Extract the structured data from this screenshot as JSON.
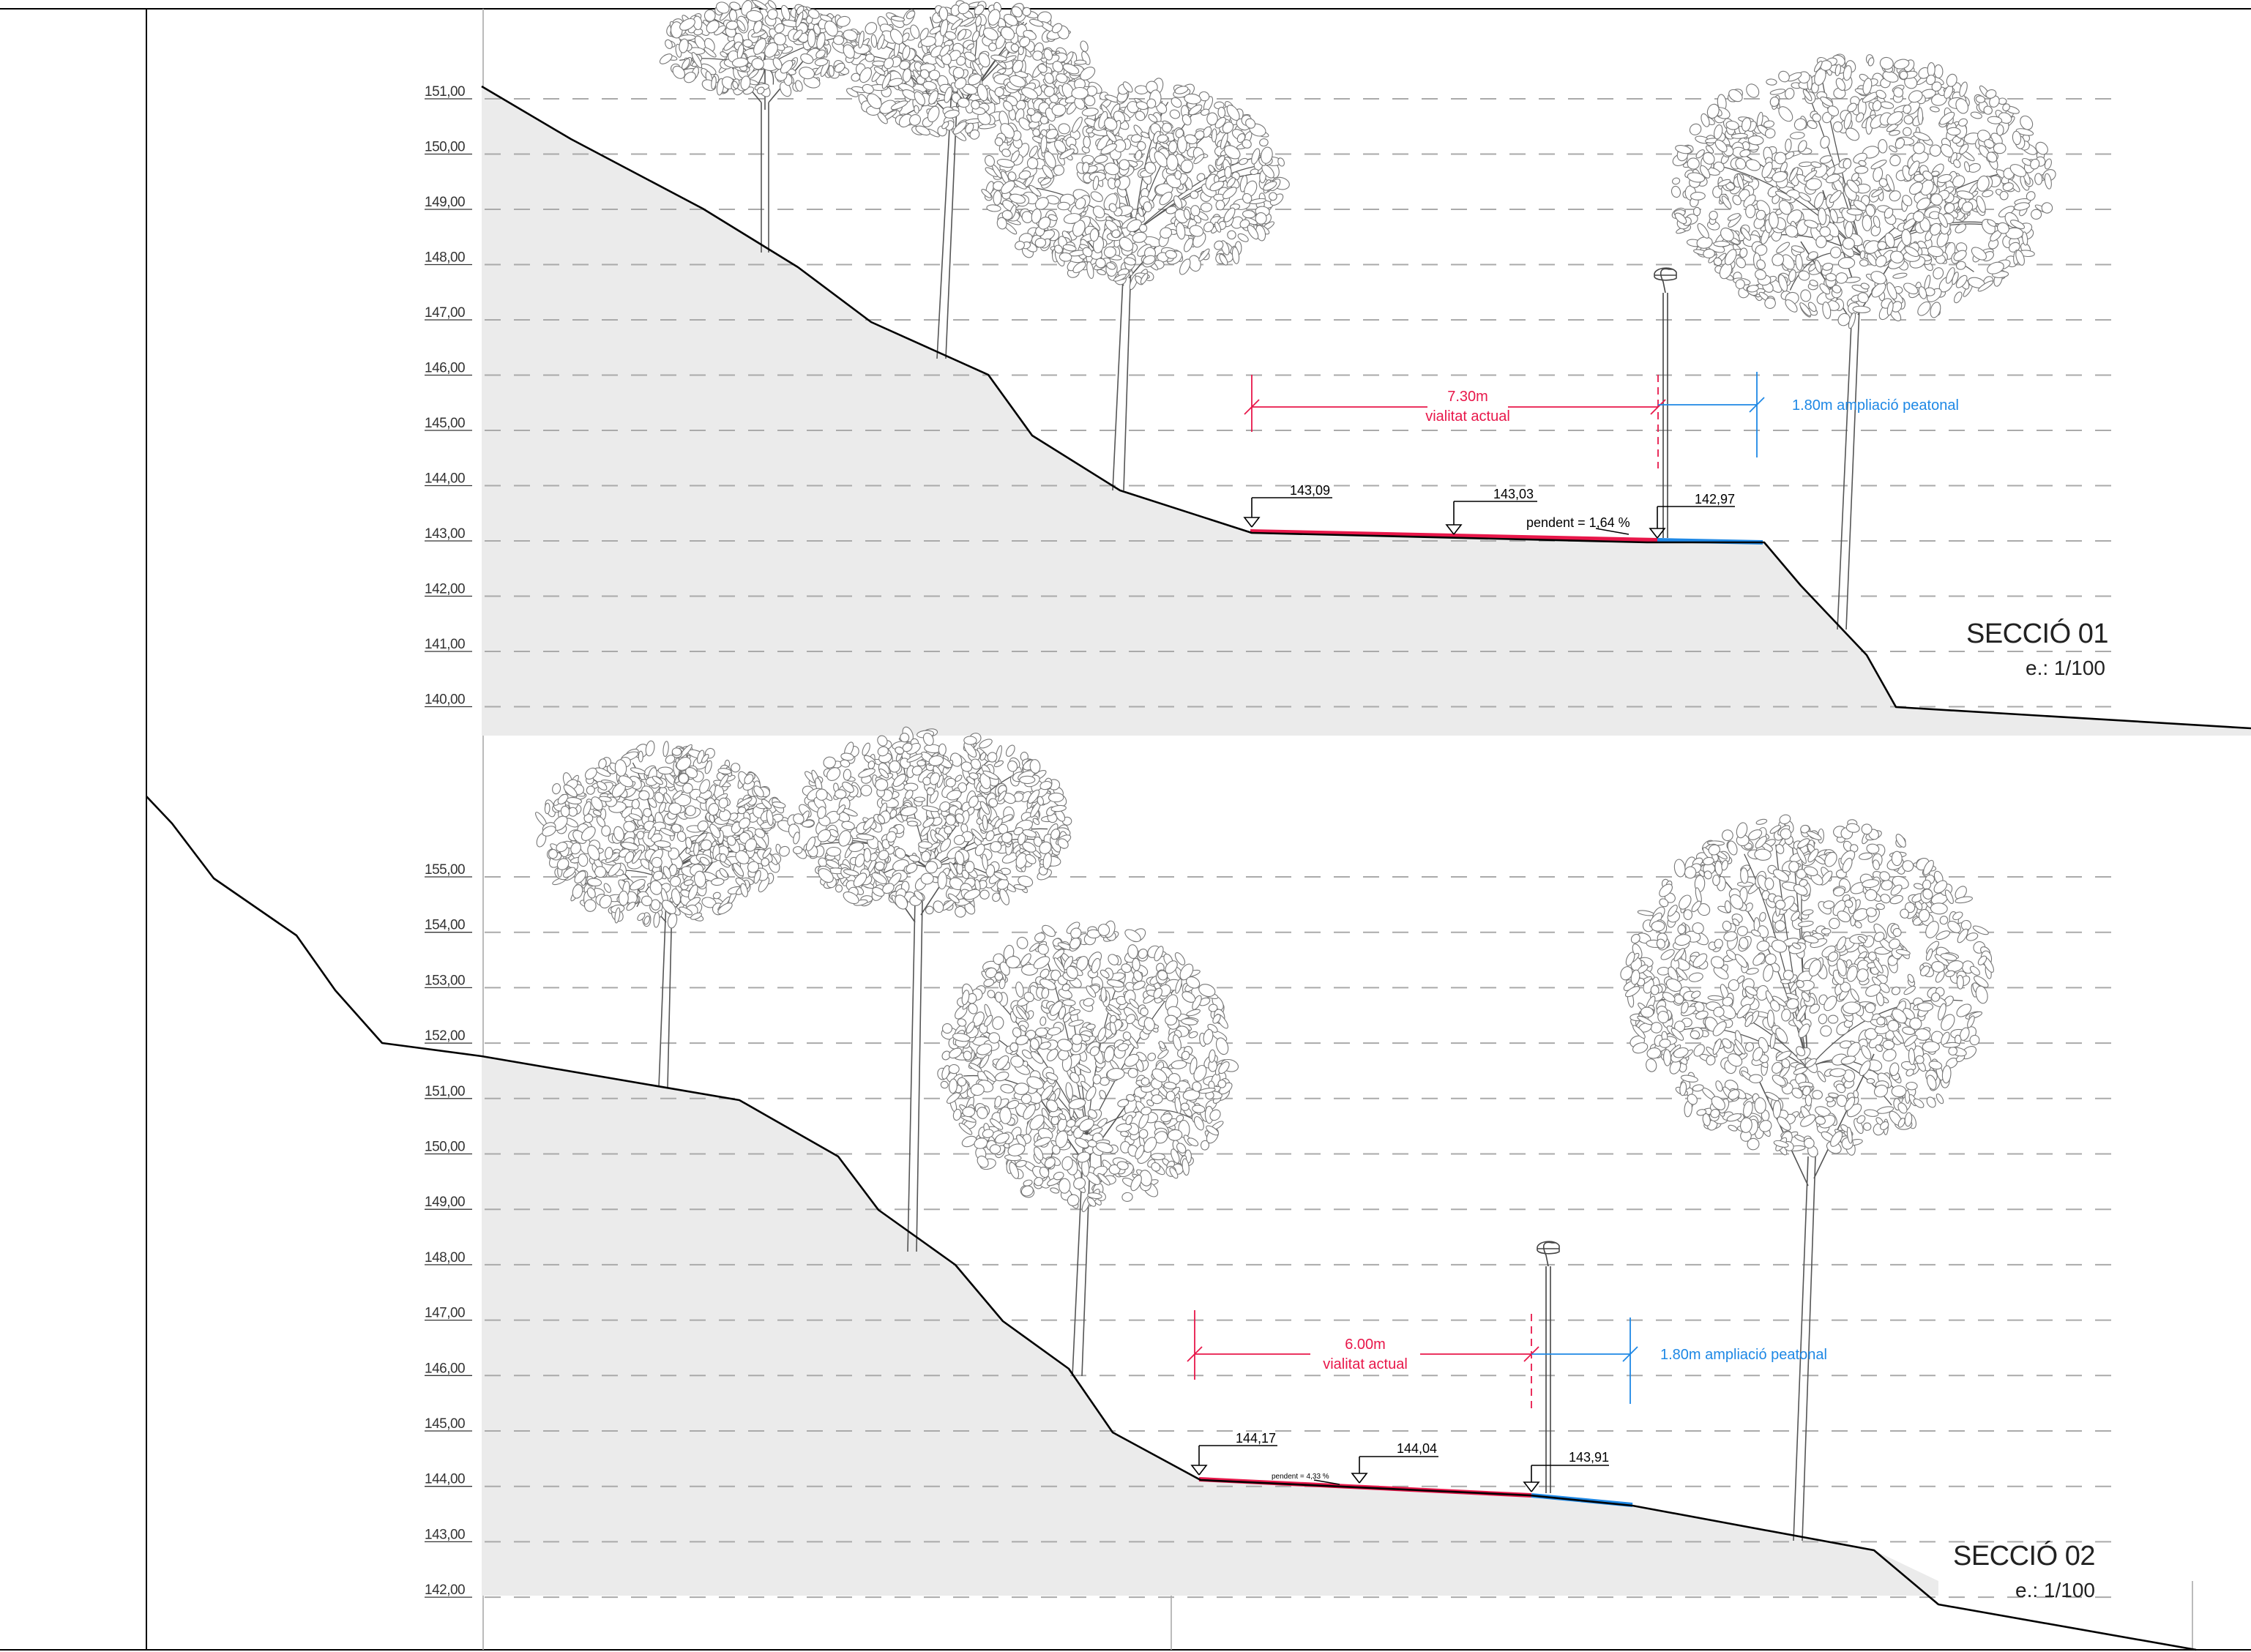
{
  "sections": [
    {
      "title": "SECCIÓ 01",
      "scale": "e.: 1/100",
      "levels": [
        "151,00",
        "150,00",
        "149,00",
        "148,00",
        "147,00",
        "146,00",
        "145,00",
        "144,00",
        "143,00",
        "142,00",
        "141,00",
        "140,00"
      ],
      "spot_levels": [
        "143,09",
        "143,03",
        "142,97"
      ],
      "slope": "pendent = 1,64 %",
      "road_width": "7.30m",
      "road_label": "vialitat actual",
      "walk_label": "1.80m  ampliació peatonal"
    },
    {
      "title": "SECCIÓ 02",
      "scale": "e.: 1/100",
      "levels": [
        "155,00",
        "154,00",
        "153,00",
        "152,00",
        "151,00",
        "150,00",
        "149,00",
        "148,00",
        "147,00",
        "146,00",
        "145,00",
        "144,00",
        "143,00",
        "142,00"
      ],
      "spot_levels": [
        "144,17",
        "144,04",
        "143,91"
      ],
      "slope": "pendent = 4,33 %",
      "road_width": "6.00m",
      "road_label": "vialitat actual",
      "walk_label": "1.80m  ampliació peatonal"
    }
  ],
  "colors": {
    "road": "#e8174a",
    "walk": "#1e88e5",
    "ground": "#ebebeb"
  }
}
